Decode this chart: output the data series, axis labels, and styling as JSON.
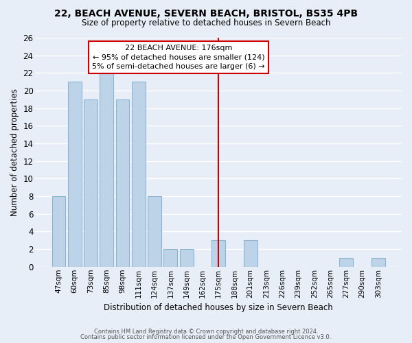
{
  "title1": "22, BEACH AVENUE, SEVERN BEACH, BRISTOL, BS35 4PB",
  "title2": "Size of property relative to detached houses in Severn Beach",
  "xlabel": "Distribution of detached houses by size in Severn Beach",
  "ylabel": "Number of detached properties",
  "footer1": "Contains HM Land Registry data © Crown copyright and database right 2024.",
  "footer2": "Contains public sector information licensed under the Open Government Licence v3.0.",
  "bar_labels": [
    "47sqm",
    "60sqm",
    "73sqm",
    "85sqm",
    "98sqm",
    "111sqm",
    "124sqm",
    "137sqm",
    "149sqm",
    "162sqm",
    "175sqm",
    "188sqm",
    "201sqm",
    "213sqm",
    "226sqm",
    "239sqm",
    "252sqm",
    "265sqm",
    "277sqm",
    "290sqm",
    "303sqm"
  ],
  "bar_values": [
    8,
    21,
    19,
    22,
    19,
    21,
    8,
    2,
    2,
    0,
    3,
    0,
    3,
    0,
    0,
    0,
    0,
    0,
    1,
    0,
    1
  ],
  "highlight_index": 10,
  "bar_color": "#bdd4e8",
  "bar_edge_color": "#89b4d4",
  "highlight_line_color": "#cc0000",
  "annotation_title": "22 BEACH AVENUE: 176sqm",
  "annotation_line1": "← 95% of detached houses are smaller (124)",
  "annotation_line2": "5% of semi-detached houses are larger (6) →",
  "annotation_box_color": "#ffffff",
  "annotation_box_edge": "#cc0000",
  "ylim": [
    0,
    26
  ],
  "yticks": [
    0,
    2,
    4,
    6,
    8,
    10,
    12,
    14,
    16,
    18,
    20,
    22,
    24,
    26
  ],
  "bg_color": "#e8eef7",
  "grid_color": "#ffffff"
}
